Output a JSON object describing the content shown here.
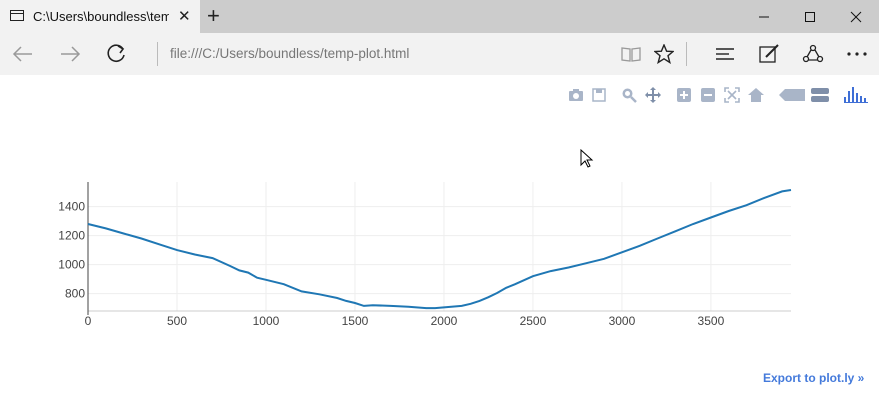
{
  "browser": {
    "tab_title": "C:\\Users\\boundless\\temp-plot.html",
    "tab_title_visible": "C:\\Users\\boundless\\tem",
    "url": "file:///C:/Users/boundless/temp-plot.html"
  },
  "plot": {
    "export_link": "Export to plot.ly »",
    "modebar_icons": [
      "camera-icon",
      "save-icon",
      "zoom-icon",
      "pan-icon",
      "zoom-in-icon",
      "zoom-out-icon",
      "autoscale-icon",
      "reset-axes-icon",
      "hover-closest-icon",
      "hover-compare-icon",
      "plotly-logo-icon"
    ]
  },
  "chart_data": {
    "type": "line",
    "title": "",
    "xlabel": "",
    "ylabel": "",
    "xlim": [
      0,
      3950
    ],
    "ylim": [
      680,
      1570
    ],
    "xticks": [
      0,
      500,
      1000,
      1500,
      2000,
      2500,
      3000,
      3500
    ],
    "yticks": [
      800,
      1000,
      1200,
      1400
    ],
    "grid": true,
    "line_color": "#1f77b4",
    "series": [
      {
        "x": [
          0,
          100,
          200,
          300,
          400,
          500,
          600,
          700,
          800,
          850,
          900,
          950,
          1000,
          1100,
          1200,
          1300,
          1400,
          1450,
          1500,
          1550,
          1600,
          1700,
          1800,
          1900,
          1950,
          2000,
          2100,
          2150,
          2200,
          2250,
          2300,
          2350,
          2400,
          2500,
          2600,
          2700,
          2800,
          2900,
          3000,
          3100,
          3200,
          3300,
          3400,
          3500,
          3600,
          3700,
          3800,
          3900,
          3950
        ],
        "y": [
          1280,
          1250,
          1215,
          1180,
          1140,
          1100,
          1070,
          1045,
          990,
          960,
          945,
          910,
          895,
          865,
          815,
          795,
          770,
          750,
          735,
          715,
          720,
          715,
          710,
          700,
          700,
          705,
          715,
          730,
          750,
          775,
          805,
          840,
          865,
          920,
          955,
          980,
          1010,
          1040,
          1085,
          1130,
          1180,
          1230,
          1280,
          1325,
          1370,
          1410,
          1460,
          1505,
          1515
        ]
      }
    ]
  }
}
